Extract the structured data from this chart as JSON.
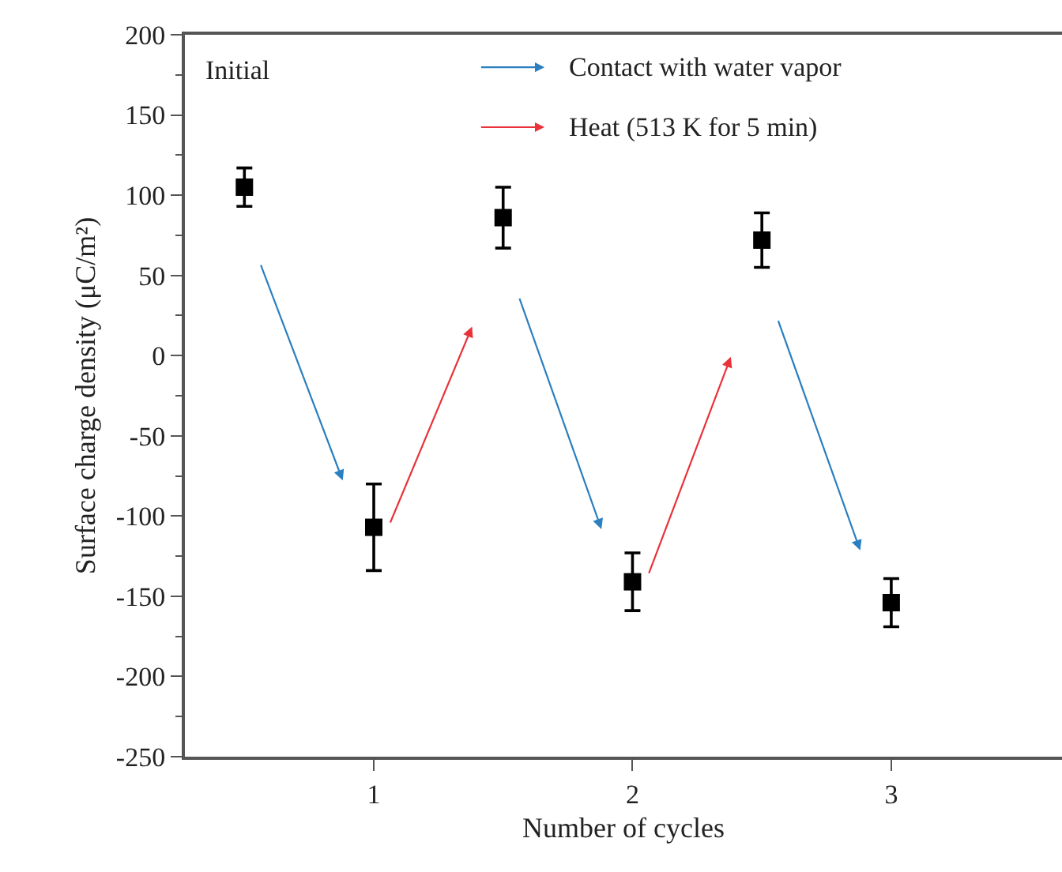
{
  "chart_data": {
    "type": "scatter",
    "xlabel": "Number of cycles",
    "ylabel": "Surface charge density (μC/m²)",
    "annotations": [
      "Initial",
      "Contact with water vapor",
      "Heat (513 K for 5 min)"
    ],
    "x": [
      0.5,
      1,
      1.5,
      2,
      2.5,
      3
    ],
    "series": [
      {
        "color": "#000000",
        "values": [
          105,
          -107,
          86,
          -141,
          72,
          -154
        ],
        "errors": [
          12,
          27,
          19,
          18,
          17,
          15
        ]
      }
    ],
    "marker": "square",
    "xlim": [
      0.27,
      3.66
    ],
    "xticks": [
      1,
      2,
      3
    ],
    "ylim": [
      -250,
      200
    ],
    "yticks": [
      -250,
      -200,
      -150,
      -100,
      -50,
      0,
      50,
      100,
      150,
      200
    ],
    "grid": false
  }
}
